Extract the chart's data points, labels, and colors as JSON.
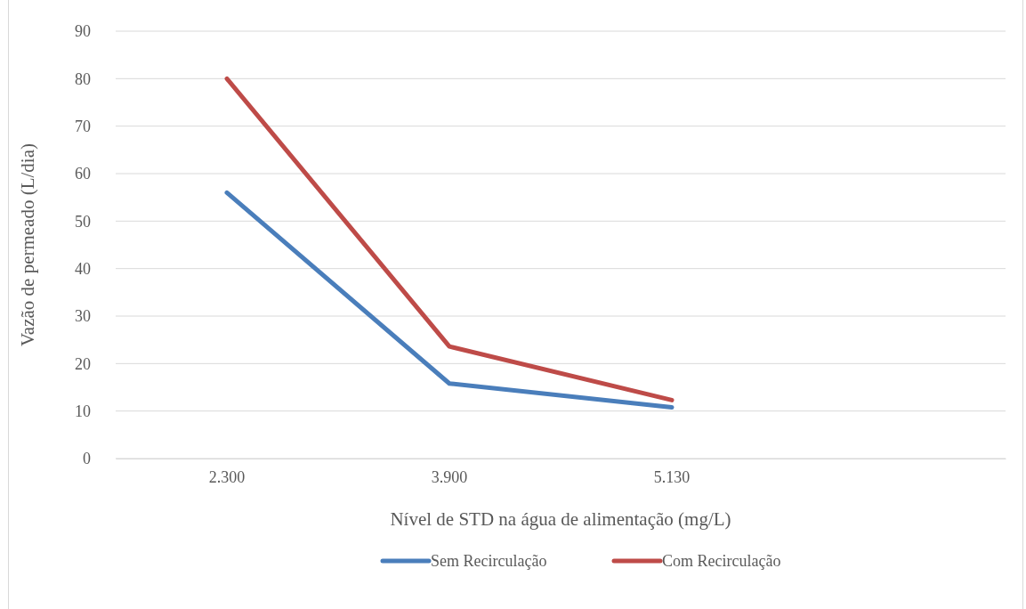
{
  "chart_data": {
    "type": "line",
    "xlabel": "Nível de STD na água de alimentação (mg/L)",
    "ylabel": "Vazão de permeado (L/dia)",
    "categories": [
      "2.300",
      "3.900",
      "5.130",
      null
    ],
    "series": [
      {
        "name": "Sem Recirculação",
        "color": "#4a7ebb",
        "values": [
          56,
          15.8,
          10.8,
          null
        ]
      },
      {
        "name": "Com Recirculação",
        "color": "#be4b48",
        "values": [
          80,
          23.6,
          12.3,
          null
        ]
      }
    ],
    "ylim": [
      0,
      90
    ],
    "yticks": [
      0,
      10,
      20,
      30,
      40,
      50,
      60,
      70,
      80,
      90
    ],
    "grid": "y",
    "legend": "bottom",
    "marker": "none",
    "line_style": "solid"
  }
}
